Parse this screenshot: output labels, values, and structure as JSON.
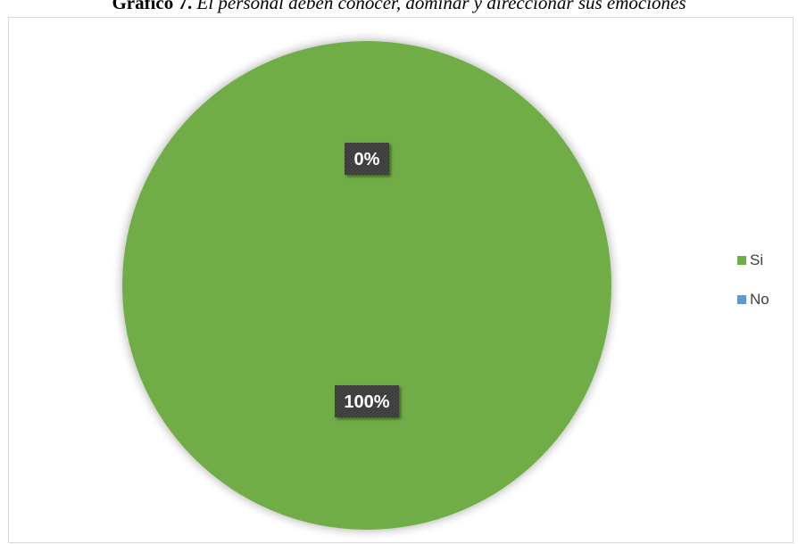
{
  "chart_title": {
    "prefix": "Gráfico 7.",
    "rest": " El personal deben conocer, dominar y direccionar sus emociones"
  },
  "chart_data": {
    "type": "pie",
    "title": "Gráfico 7. El personal deben conocer, dominar y direccionar sus emociones",
    "categories": [
      "Si",
      "No"
    ],
    "values": [
      100,
      0
    ],
    "data_labels": [
      "100%",
      "0%"
    ],
    "colors": [
      "#70ad47",
      "#5b9bd5"
    ],
    "legend_position": "right"
  },
  "legend": {
    "items": [
      {
        "label": "Si",
        "color": "#70ad47"
      },
      {
        "label": "No",
        "color": "#5b9bd5"
      }
    ]
  }
}
